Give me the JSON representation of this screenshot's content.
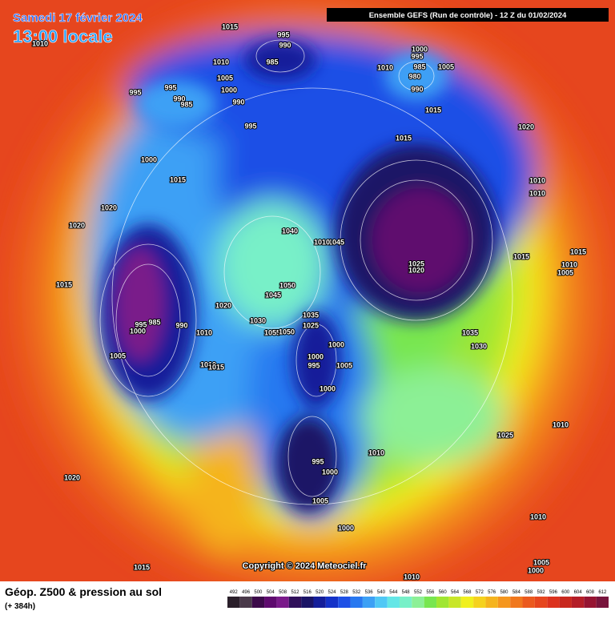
{
  "header": {
    "date": "Samedi 17 février 2024",
    "time": "13:00 locale",
    "model": "Ensemble GEFS  (Run de contrôle)  -  12 Z du 01/02/2024"
  },
  "copyright": "Copyright © 2024 Meteociel.fr",
  "footer": {
    "title": "Géop. Z500 & pression au sol",
    "lead": "(+ 384h)"
  },
  "scale": {
    "labels": [
      492,
      496,
      500,
      504,
      508,
      512,
      516,
      520,
      524,
      528,
      532,
      536,
      540,
      544,
      548,
      552,
      556,
      560,
      564,
      568,
      572,
      576,
      580,
      584,
      588,
      592,
      596,
      600,
      604,
      608,
      612
    ],
    "colors": [
      "#2a1f2a",
      "#4a3a4a",
      "#3c0a4a",
      "#5e0a6e",
      "#7a1a8a",
      "#30105a",
      "#1a1466",
      "#141e9a",
      "#1432c8",
      "#1e50e6",
      "#2878f0",
      "#3ca0f5",
      "#50c8f5",
      "#64e6e6",
      "#78f0c8",
      "#8cf096",
      "#78e650",
      "#a0e632",
      "#c8e628",
      "#f0f01e",
      "#f5d21e",
      "#f5b41e",
      "#f5961e",
      "#f0781e",
      "#eb5a1e",
      "#e6461e",
      "#dc321e",
      "#c8281e",
      "#b41e28",
      "#961432",
      "#78143c"
    ]
  },
  "pressure_labels": [
    1015,
    995,
    990,
    1010,
    1010,
    985,
    1000,
    995,
    985,
    980,
    990,
    1005,
    1010,
    1005,
    995,
    995,
    990,
    985,
    1000,
    990,
    995,
    1015,
    1020,
    1015,
    1000,
    1015,
    1010,
    1010,
    1020,
    1020,
    1040,
    1045,
    1010,
    1015,
    1015,
    1010,
    1005,
    1025,
    1020,
    1015,
    1050,
    1045,
    1020,
    985,
    990,
    995,
    1000,
    1010,
    1005,
    1035,
    1030,
    1025,
    1055,
    1050,
    1035,
    1030,
    1000,
    1000,
    995,
    1005,
    1010,
    1015,
    1000,
    1010,
    1025,
    1010,
    995,
    1000,
    1020,
    1005,
    1000,
    1010,
    1005,
    1000,
    1015,
    1010
  ]
}
